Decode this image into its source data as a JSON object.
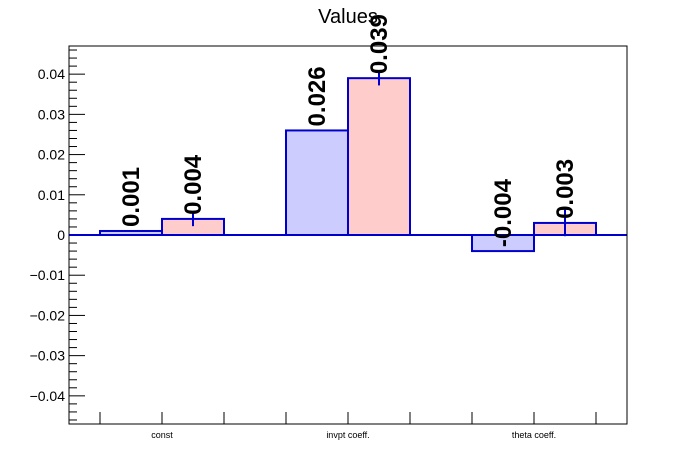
{
  "chart_data": {
    "type": "bar",
    "title": "Values",
    "categories": [
      "const",
      "invpt coeff.",
      "theta coeff."
    ],
    "series": [
      {
        "values": [
          0.001,
          0.026,
          -0.004
        ],
        "errors": [
          0,
          0,
          0
        ],
        "labels": [
          "0.001",
          "0.026",
          "-0.004"
        ],
        "fill": "#ccccff"
      },
      {
        "values": [
          0.004,
          0.039,
          0.003
        ],
        "errors": [
          0.0018,
          0.0018,
          0.0033
        ],
        "labels": [
          "0.004",
          "0.039",
          "0.003"
        ],
        "fill": "#ffcccc"
      }
    ],
    "ylim": [
      -0.047,
      0.047
    ],
    "yticks": [
      -0.04,
      -0.03,
      -0.02,
      -0.01,
      0,
      0.01,
      0.02,
      0.03,
      0.04
    ],
    "ytick_labels": [
      "−0.04",
      "−0.03",
      "−0.02",
      "−0.01",
      "0",
      "0.01",
      "0.02",
      "0.03",
      "0.04"
    ],
    "xlabel": "",
    "ylabel": "",
    "grid": false,
    "outline_color": "#0000cc"
  }
}
